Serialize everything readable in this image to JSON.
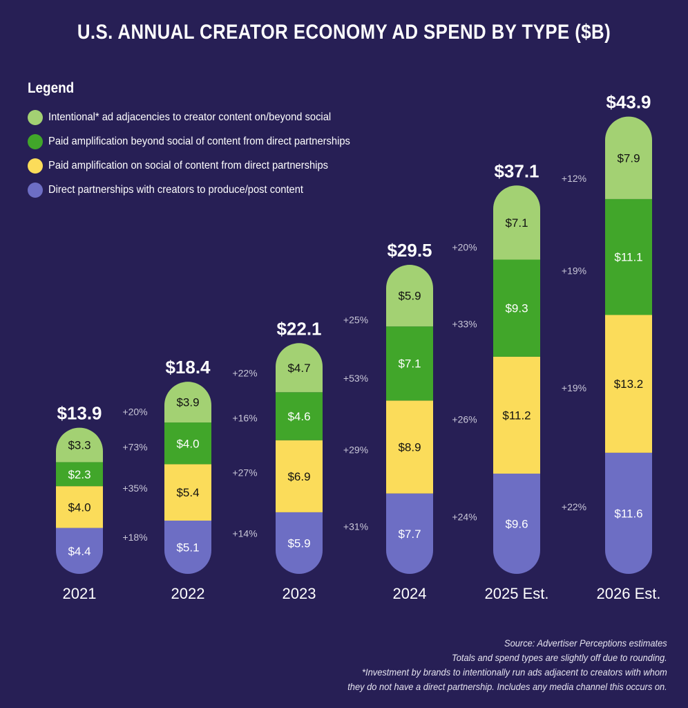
{
  "title": "U.S. ANNUAL CREATOR ECONOMY AD SPEND BY TYPE ($B)",
  "legend": {
    "title": "Legend",
    "items": [
      {
        "label": "Intentional* ad adjacencies to creator content on/beyond social",
        "color": "#a3d173"
      },
      {
        "label": "Paid amplification beyond social of content from direct partnerships",
        "color": "#41a62a"
      },
      {
        "label": "Paid amplification on social of content from direct partnerships",
        "color": "#fbdc5a"
      },
      {
        "label": "Direct partnerships with creators to produce/post content",
        "color": "#6d6ec4"
      }
    ]
  },
  "footnotes": [
    "Source: Advertiser Perceptions estimates",
    "Totals and spend types are slightly off due to rounding.",
    "*Investment by brands to intentionally run ads adjacent to creators with whom",
    "they do not have a direct partnership. Includes any media channel this occurs on."
  ],
  "chart_data": {
    "type": "bar",
    "stacked": true,
    "title": "U.S. ANNUAL CREATOR ECONOMY AD SPEND BY TYPE ($B)",
    "xlabel": "",
    "ylabel": "",
    "unit": "$B",
    "grid": false,
    "legend_position": "top-left",
    "categories": [
      "2021",
      "2022",
      "2023",
      "2024",
      "2025 Est.",
      "2026 Est."
    ],
    "totals": [
      13.9,
      18.4,
      22.1,
      29.5,
      37.1,
      43.9
    ],
    "total_labels": [
      "$13.9",
      "$18.4",
      "$22.1",
      "$29.5",
      "$37.1",
      "$43.9"
    ],
    "series": [
      {
        "name": "Direct partnerships with creators to produce/post content",
        "color": "#6d6ec4",
        "label_color": "#ffffff",
        "values": [
          4.4,
          5.1,
          5.9,
          7.7,
          9.6,
          11.6
        ],
        "labels": [
          "$4.4",
          "$5.1",
          "$5.9",
          "$7.7",
          "$9.6",
          "$11.6"
        ]
      },
      {
        "name": "Paid amplification on social of content from direct partnerships",
        "color": "#fbdc5a",
        "label_color": "#111111",
        "values": [
          4.0,
          5.4,
          6.9,
          8.9,
          11.2,
          13.2
        ],
        "labels": [
          "$4.0",
          "$5.4",
          "$6.9",
          "$8.9",
          "$11.2",
          "$13.2"
        ]
      },
      {
        "name": "Paid amplification beyond social of content from direct partnerships",
        "color": "#41a62a",
        "label_color": "#ffffff",
        "values": [
          2.3,
          4.0,
          4.6,
          7.1,
          9.3,
          11.1
        ],
        "labels": [
          "$2.3",
          "$4.0",
          "$4.6",
          "$7.1",
          "$9.3",
          "$11.1"
        ]
      },
      {
        "name": "Intentional* ad adjacencies to creator content on/beyond social",
        "color": "#a3d173",
        "label_color": "#111111",
        "values": [
          3.3,
          3.9,
          4.7,
          5.9,
          7.1,
          7.9
        ],
        "labels": [
          "$3.3",
          "$3.9",
          "$4.7",
          "$5.9",
          "$7.1",
          "$7.9"
        ]
      }
    ],
    "growth_annotations": [
      {
        "after": "2021",
        "labels": [
          "+20%",
          "+73%",
          "+35%",
          "+18%"
        ]
      },
      {
        "after": "2022",
        "labels": [
          "+22%",
          "+16%",
          "+27%",
          "+14%"
        ]
      },
      {
        "after": "2023",
        "labels": [
          "+25%",
          "+53%",
          "+29%",
          "+31%"
        ]
      },
      {
        "after": "2024",
        "labels": [
          "+20%",
          "+33%",
          "+26%",
          "+24%"
        ]
      },
      {
        "after": "2025 Est.",
        "labels": [
          "+12%",
          "+19%",
          "+19%",
          "+22%"
        ]
      }
    ],
    "growth_annotation_order": "top-to-bottom: intentional, beyond-social, on-social, direct"
  }
}
